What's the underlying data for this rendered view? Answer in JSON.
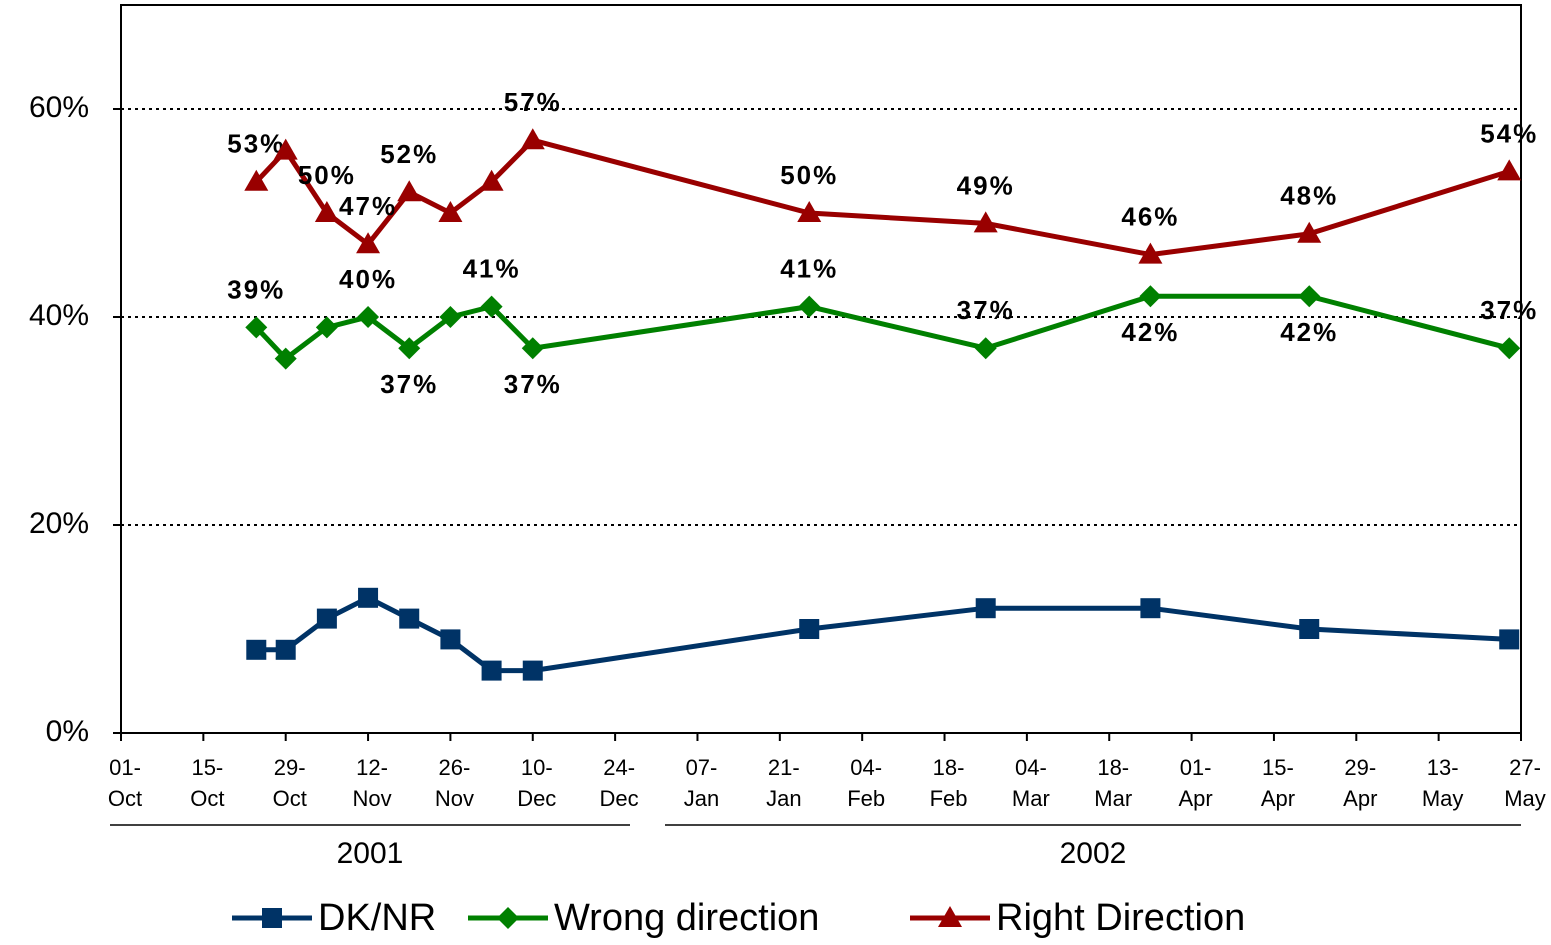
{
  "chart_data": {
    "type": "line",
    "x": [
      "2001-10-24",
      "2001-10-29",
      "2001-11-05",
      "2001-11-12",
      "2001-11-19",
      "2001-11-26",
      "2001-12-03",
      "2001-12-10",
      "2002-01-26",
      "2002-02-25",
      "2002-03-25",
      "2002-04-21",
      "2002-05-25"
    ],
    "xlim": [
      "2001-10-01",
      "2002-05-27"
    ],
    "xticks": [
      {
        "value": "2001-10-01",
        "label": "01-Oct"
      },
      {
        "value": "2001-10-15",
        "label": "15-Oct"
      },
      {
        "value": "2001-10-29",
        "label": "29-Oct"
      },
      {
        "value": "2001-11-12",
        "label": "12-Nov"
      },
      {
        "value": "2001-11-26",
        "label": "26-Nov"
      },
      {
        "value": "2001-12-10",
        "label": "10-Dec"
      },
      {
        "value": "2001-12-24",
        "label": "24-Dec"
      },
      {
        "value": "2002-01-07",
        "label": "07-Jan"
      },
      {
        "value": "2002-01-21",
        "label": "21-Jan"
      },
      {
        "value": "2002-02-04",
        "label": "04-Feb"
      },
      {
        "value": "2002-02-18",
        "label": "18-Feb"
      },
      {
        "value": "2002-03-04",
        "label": "04-Mar"
      },
      {
        "value": "2002-03-18",
        "label": "18-Mar"
      },
      {
        "value": "2002-04-01",
        "label": "01-Apr"
      },
      {
        "value": "2002-04-15",
        "label": "15-Apr"
      },
      {
        "value": "2002-04-29",
        "label": "29-Apr"
      },
      {
        "value": "2002-05-13",
        "label": "13-May"
      },
      {
        "value": "2002-05-27",
        "label": "27-May"
      }
    ],
    "x_groups": [
      "2001",
      "2002"
    ],
    "ylim": [
      0,
      70
    ],
    "yticks": [
      {
        "value": 0,
        "label": "0%"
      },
      {
        "value": 20,
        "label": "20%"
      },
      {
        "value": 40,
        "label": "40%"
      },
      {
        "value": 60,
        "label": "60%"
      }
    ],
    "grid": true,
    "legend": "bottom",
    "series": [
      {
        "name": "DK/NR",
        "color": "#003366",
        "marker": "square",
        "values": [
          8,
          8,
          11,
          13,
          11,
          9,
          6,
          6,
          10,
          12,
          12,
          10,
          9
        ]
      },
      {
        "name": "Wrong direction",
        "color": "#008000",
        "marker": "diamond",
        "values": [
          39,
          36,
          39,
          40,
          37,
          40,
          41,
          37,
          41,
          37,
          42,
          42,
          37
        ],
        "value_labels": [
          "39%",
          null,
          null,
          "40%",
          "37%",
          null,
          "41%",
          "37%",
          "41%",
          "37%",
          "42%",
          "42%",
          "37%"
        ]
      },
      {
        "name": "Right Direction",
        "color": "#990000",
        "marker": "triangle",
        "values": [
          53,
          56,
          50,
          47,
          52,
          50,
          53,
          57,
          50,
          49,
          46,
          48,
          54
        ],
        "value_labels": [
          "53%",
          null,
          "50%",
          "47%",
          "52%",
          null,
          null,
          "57%",
          "50%",
          "49%",
          "46%",
          "48%",
          "54%"
        ]
      }
    ]
  }
}
